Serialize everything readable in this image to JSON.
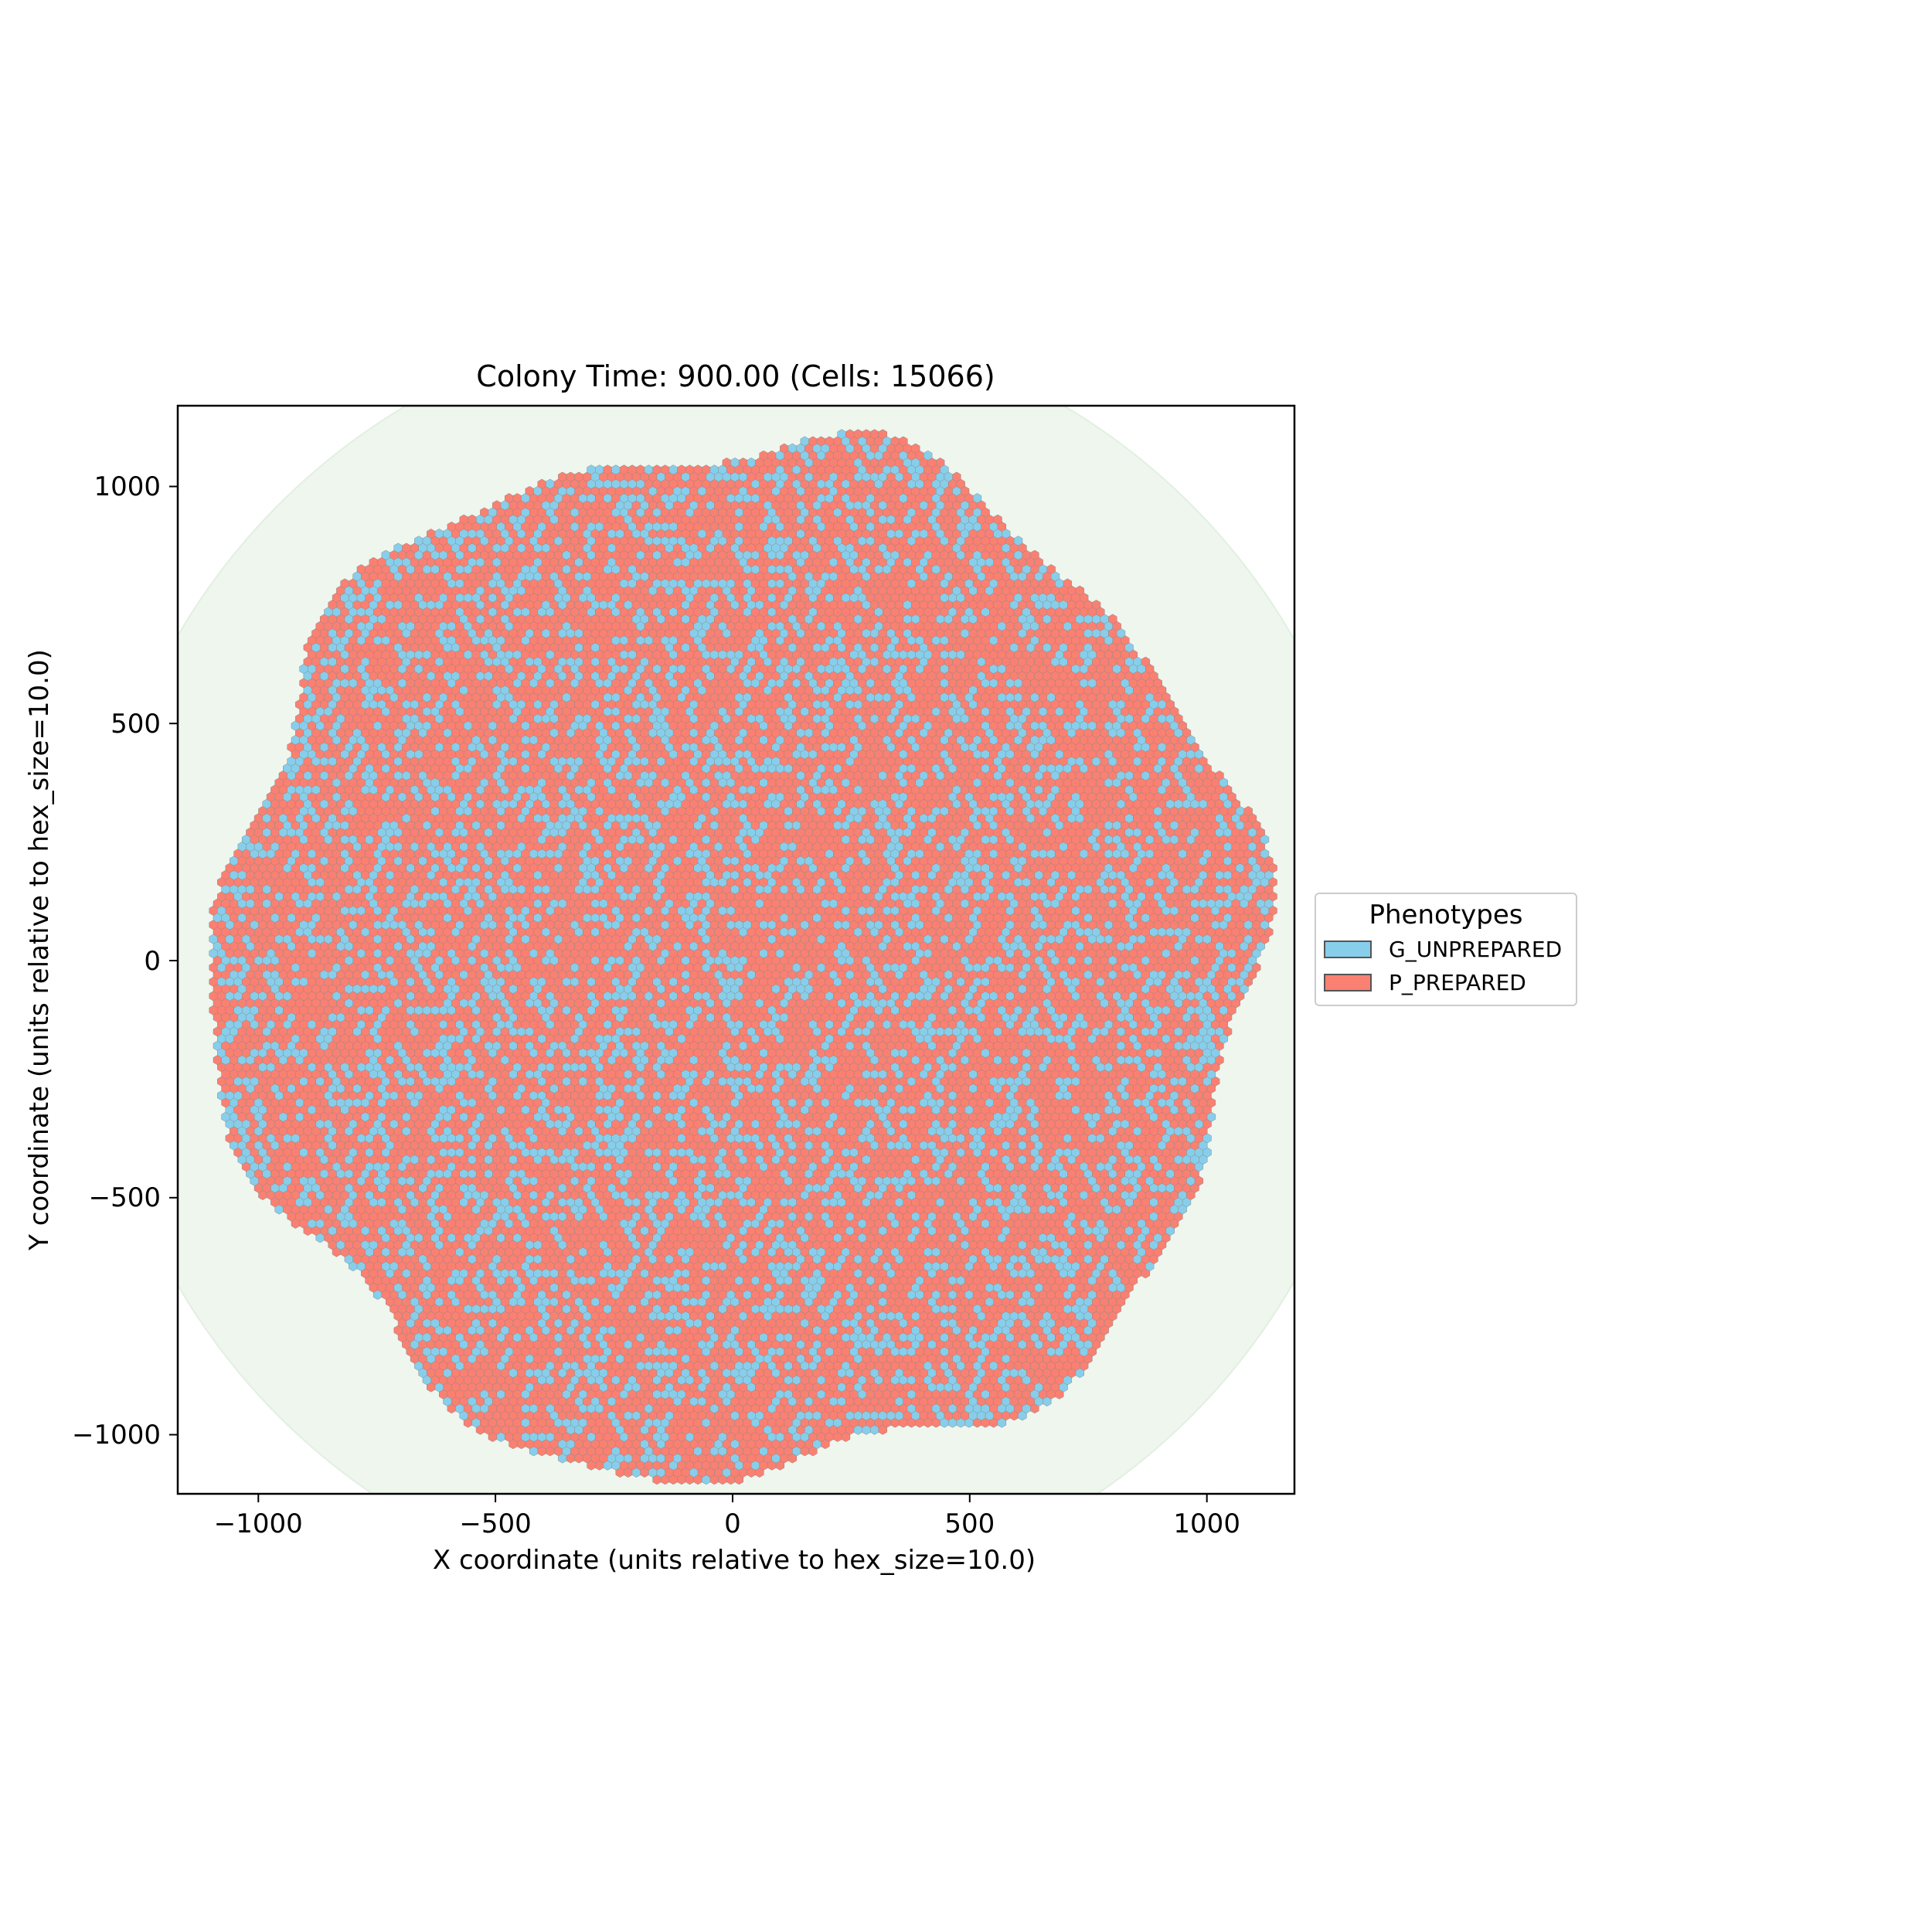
{
  "chart_data": {
    "type": "scatter",
    "title": "Colony Time: 900.00 (Cells: 15066)",
    "xlabel": "X coordinate (units relative to hex_size=10.0)",
    "ylabel": "Y coordinate (units relative to hex_size=10.0)",
    "xlim": [
      -1175,
      1180
    ],
    "ylim": [
      -1125,
      1170
    ],
    "xticks": [
      -1000,
      -500,
      0,
      500,
      1000
    ],
    "xtick_labels": [
      "−1000",
      "−500",
      "0",
      "500",
      "1000"
    ],
    "yticks": [
      -1000,
      -500,
      0,
      500,
      1000
    ],
    "ytick_labels": [
      "−1000",
      "−500",
      "0",
      "500",
      "1000"
    ],
    "grid": false,
    "hex_size": 10.0,
    "colony_center": [
      0,
      0
    ],
    "colony_radius": 1150,
    "background_disk_radius": 1360,
    "legend": {
      "title": "Phenotypes",
      "placement": "center right, outside axes",
      "entries": [
        "G_UNPREPARED",
        "P_PREPARED"
      ]
    },
    "series": [
      {
        "name": "G_UNPREPARED",
        "color": "#87CEEB",
        "approx_fraction": 0.3
      },
      {
        "name": "P_PREPARED",
        "color": "#FA8072",
        "approx_fraction": 0.7
      }
    ],
    "colors": {
      "background_disk": "#eef6ee",
      "hex_edge": "#8a8a8a",
      "axes_edge": "#000000"
    }
  }
}
